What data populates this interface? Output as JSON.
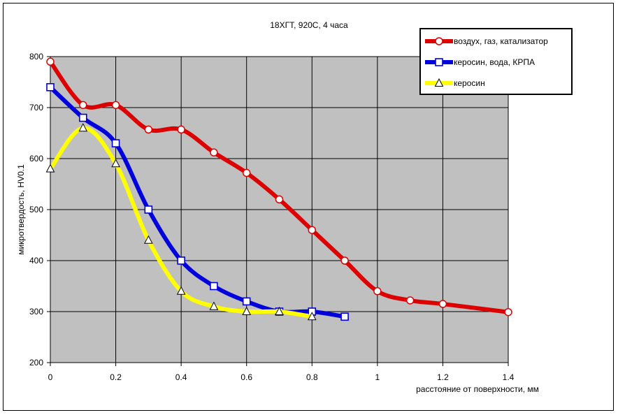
{
  "chart_data": {
    "type": "line",
    "title": "18ХГТ, 920С, 4 часа",
    "xlabel": "расстояние от поверхности, мм",
    "ylabel": "микротвердость, HV0.1",
    "xlim": [
      0,
      1.4
    ],
    "ylim": [
      200,
      800
    ],
    "xticks": [
      0,
      0.2,
      0.4,
      0.6,
      0.8,
      1,
      1.2,
      1.4
    ],
    "xtick_labels": [
      "0",
      "0.2",
      "0.4",
      "0.6",
      "0.8",
      "1",
      "1.2",
      "1.4"
    ],
    "yticks": [
      200,
      300,
      400,
      500,
      600,
      700,
      800
    ],
    "ytick_labels": [
      "200",
      "300",
      "400",
      "500",
      "600",
      "700",
      "800"
    ],
    "grid": true,
    "legend_position": "top-right",
    "plot_background": "#c0c0c0",
    "series": [
      {
        "name": "воздух, газ, катализатор",
        "color": "#dd0000",
        "marker": "circle",
        "x": [
          0,
          0.1,
          0.2,
          0.3,
          0.4,
          0.5,
          0.6,
          0.7,
          0.8,
          0.9,
          1.0,
          1.1,
          1.2,
          1.4
        ],
        "y": [
          790,
          705,
          705,
          657,
          657,
          612,
          572,
          520,
          460,
          400,
          340,
          322,
          315,
          299
        ]
      },
      {
        "name": "керосин, вода, КРПА",
        "color": "#0000dd",
        "marker": "square",
        "x": [
          0,
          0.1,
          0.2,
          0.3,
          0.4,
          0.5,
          0.6,
          0.7,
          0.8,
          0.9
        ],
        "y": [
          740,
          680,
          630,
          500,
          400,
          350,
          320,
          300,
          300,
          290
        ]
      },
      {
        "name": "керосин",
        "color": "#ffff00",
        "marker": "triangle",
        "x": [
          0,
          0.1,
          0.2,
          0.3,
          0.4,
          0.5,
          0.6,
          0.7,
          0.8
        ],
        "y": [
          580,
          660,
          590,
          440,
          340,
          310,
          300,
          300,
          290
        ]
      }
    ]
  }
}
